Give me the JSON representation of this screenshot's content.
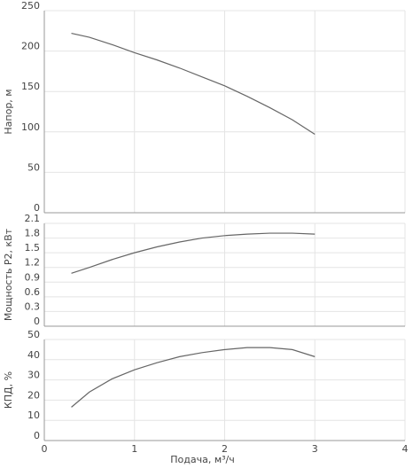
{
  "chart_data": [
    {
      "type": "line",
      "ylabel": "Напор, м",
      "x": [
        0.3,
        0.5,
        0.75,
        1,
        1.25,
        1.5,
        1.75,
        2,
        2.25,
        2.5,
        2.75,
        3
      ],
      "series": [
        {
          "color": "#666666",
          "values": [
            222,
            217,
            208,
            198,
            189,
            179,
            168,
            157,
            144,
            130,
            115,
            97
          ]
        }
      ],
      "xlim": [
        0,
        4
      ],
      "xticks": [
        0,
        1,
        2,
        3,
        4
      ],
      "ylim": [
        0,
        250
      ],
      "yticks": [
        0,
        50,
        100,
        150,
        200,
        250
      ],
      "grid": true
    },
    {
      "type": "line",
      "ylabel": "Мощность P2, кВт",
      "x": [
        0.3,
        0.5,
        0.75,
        1,
        1.25,
        1.5,
        1.75,
        2,
        2.25,
        2.5,
        2.75,
        3
      ],
      "series": [
        {
          "color": "#666666",
          "values": [
            1.08,
            1.2,
            1.36,
            1.5,
            1.62,
            1.72,
            1.8,
            1.85,
            1.88,
            1.9,
            1.9,
            1.88
          ]
        }
      ],
      "xlim": [
        0,
        4
      ],
      "xticks": [
        0,
        1,
        2,
        3,
        4
      ],
      "ylim": [
        0,
        2.1
      ],
      "yticks": [
        0,
        0.3,
        0.6,
        0.9,
        1.2,
        1.5,
        1.8,
        2.1
      ],
      "grid": true
    },
    {
      "type": "line",
      "ylabel": "КПД, %",
      "xlabel": "Подача, м³/ч",
      "x": [
        0.3,
        0.5,
        0.75,
        1,
        1.25,
        1.5,
        1.75,
        2,
        2.25,
        2.5,
        2.75,
        3
      ],
      "series": [
        {
          "color": "#666666",
          "values": [
            16.5,
            24,
            30.5,
            35,
            38.5,
            41.5,
            43.5,
            45,
            46,
            46,
            45,
            41.5
          ]
        }
      ],
      "xlim": [
        0,
        4
      ],
      "xticks": [
        0,
        1,
        2,
        3,
        4
      ],
      "ylim": [
        0,
        50
      ],
      "yticks": [
        0,
        10,
        20,
        30,
        40,
        50
      ],
      "grid": true
    }
  ]
}
